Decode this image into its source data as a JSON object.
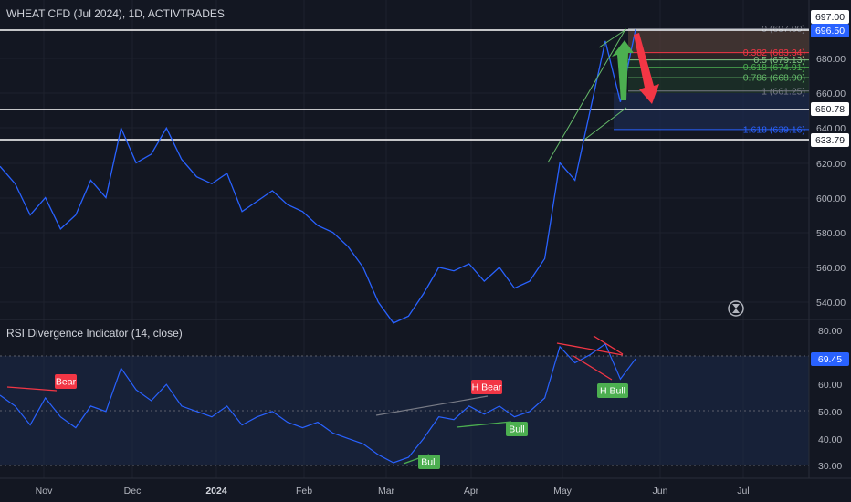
{
  "header": {
    "symbol_title": "WHEAT CFD (Jul 2024), 1D, ACTIVTRADES"
  },
  "rsi_panel": {
    "title": "RSI Divergence Indicator (14, close)",
    "current_label": "69.45"
  },
  "price_axis": {
    "ticks": [
      "680.00",
      "660.00",
      "640.00",
      "620.00",
      "600.00",
      "580.00",
      "560.00",
      "540.00"
    ],
    "labels": [
      "697.00",
      "696.50",
      "650.78",
      "633.79"
    ]
  },
  "rsi_axis": {
    "ticks": [
      "80.00",
      "60.00",
      "50.00",
      "40.00",
      "30.00"
    ]
  },
  "time_axis": [
    "Nov",
    "Dec",
    "2024",
    "Feb",
    "Mar",
    "Apr",
    "May",
    "Jun",
    "Jul"
  ],
  "fib_levels": [
    {
      "label": "0 (697.00)",
      "value": 697.0,
      "color": "#787b86"
    },
    {
      "label": "0.382 (683.34)",
      "value": 683.34,
      "color": "#f23645"
    },
    {
      "label": "0.5 (679.13)",
      "value": 679.13,
      "color": "#81c784"
    },
    {
      "label": "0.618 (674.91)",
      "value": 674.91,
      "color": "#4caf50"
    },
    {
      "label": "0.786 (668.90)",
      "value": 668.9,
      "color": "#66bb6a"
    },
    {
      "label": "1 (661.25)",
      "value": 661.25,
      "color": "#787b86"
    },
    {
      "label": "1.618 (639.16)",
      "value": 639.16,
      "color": "#2962ff"
    }
  ],
  "signals": [
    "Bear",
    "H Bear",
    "Bull",
    "Bull",
    "H Bull"
  ],
  "colors": {
    "line": "#2962ff",
    "bear": "#f23645",
    "bull": "#4caf50",
    "bg": "#131722"
  },
  "chart_data": {
    "type": "line",
    "title": "WHEAT CFD (Jul 2024), 1D, ACTIVTRADES",
    "price_series": {
      "name": "WHEAT CFD (Jul 2024)",
      "ylim": [
        530,
        700
      ],
      "x": [
        "Oct 26",
        "Oct 31",
        "Nov 5",
        "Nov 10",
        "Nov 15",
        "Nov 20",
        "Nov 25",
        "Nov 30",
        "Dec 5",
        "Dec 10",
        "Dec 15",
        "Dec 20",
        "Dec 25",
        "Dec 30",
        "Jan 4",
        "Jan 9",
        "Jan 14",
        "Jan 19",
        "Jan 24",
        "Jan 29",
        "Feb 3",
        "Feb 8",
        "Feb 13",
        "Feb 18",
        "Feb 23",
        "Feb 28",
        "Mar 4",
        "Mar 9",
        "Mar 14",
        "Mar 19",
        "Mar 24",
        "Mar 29",
        "Apr 3",
        "Apr 8",
        "Apr 13",
        "Apr 18",
        "Apr 23",
        "Apr 28",
        "May 3",
        "May 8",
        "May 13",
        "May 18",
        "May 23"
      ],
      "y": [
        618,
        608,
        590,
        600,
        582,
        590,
        610,
        600,
        640,
        620,
        625,
        640,
        622,
        612,
        608,
        614,
        592,
        598,
        604,
        596,
        592,
        584,
        580,
        572,
        560,
        540,
        528,
        532,
        545,
        560,
        558,
        562,
        552,
        560,
        548,
        552,
        565,
        620,
        610,
        650,
        690,
        655,
        696.5
      ]
    },
    "rsi_series": {
      "name": "RSI (14, close)",
      "ylim": [
        30,
        80
      ],
      "x": [
        "Oct 26",
        "Oct 31",
        "Nov 5",
        "Nov 10",
        "Nov 15",
        "Nov 20",
        "Nov 25",
        "Nov 30",
        "Dec 5",
        "Dec 10",
        "Dec 15",
        "Dec 20",
        "Dec 25",
        "Dec 30",
        "Jan 4",
        "Jan 9",
        "Jan 14",
        "Jan 19",
        "Jan 24",
        "Jan 29",
        "Feb 3",
        "Feb 8",
        "Feb 13",
        "Feb 18",
        "Feb 23",
        "Feb 28",
        "Mar 4",
        "Mar 9",
        "Mar 14",
        "Mar 19",
        "Mar 24",
        "Mar 29",
        "Apr 3",
        "Apr 8",
        "Apr 13",
        "Apr 18",
        "Apr 23",
        "Apr 28",
        "May 3",
        "May 8",
        "May 13",
        "May 18",
        "May 23"
      ],
      "y": [
        56,
        52,
        45,
        55,
        48,
        44,
        52,
        50,
        66,
        58,
        54,
        60,
        52,
        50,
        48,
        52,
        45,
        48,
        50,
        46,
        44,
        46,
        42,
        40,
        38,
        34,
        31,
        33,
        40,
        48,
        47,
        52,
        49,
        52,
        48,
        50,
        55,
        74,
        68,
        71,
        75,
        62,
        69.45
      ]
    },
    "fibonacci": [
      {
        "ratio": 0,
        "price": 697.0
      },
      {
        "ratio": 0.382,
        "price": 683.34
      },
      {
        "ratio": 0.5,
        "price": 679.13
      },
      {
        "ratio": 0.618,
        "price": 674.91
      },
      {
        "ratio": 0.786,
        "price": 668.9
      },
      {
        "ratio": 1,
        "price": 661.25
      },
      {
        "ratio": 1.618,
        "price": 639.16
      }
    ],
    "horizontal_levels": [
      697.0,
      650.78,
      633.79
    ],
    "current_price": 696.5,
    "rsi_current": 69.45,
    "annotations": [
      "Bear",
      "H Bear",
      "Bull",
      "Bull",
      "H Bull"
    ]
  }
}
